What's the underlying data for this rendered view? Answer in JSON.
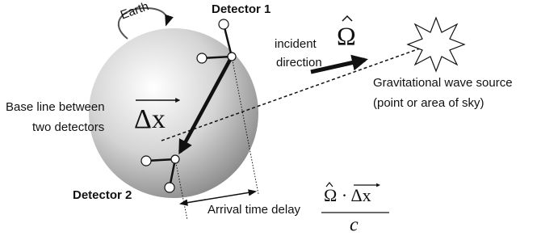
{
  "labels": {
    "earth": "Earth",
    "detector_1": "Detector 1",
    "detector_2": "Detector 2",
    "incident_1": "incident",
    "incident_2": "direction",
    "omega": "Ω",
    "source_1": "Gravitational wave source",
    "source_2": "(point or area of sky)",
    "baseline_1": "Base line between",
    "baseline_2": "two detectors",
    "delta_x": "Δx",
    "delay": "Arrival time delay",
    "numerator": "Ω · Δx",
    "denominator": "c"
  }
}
